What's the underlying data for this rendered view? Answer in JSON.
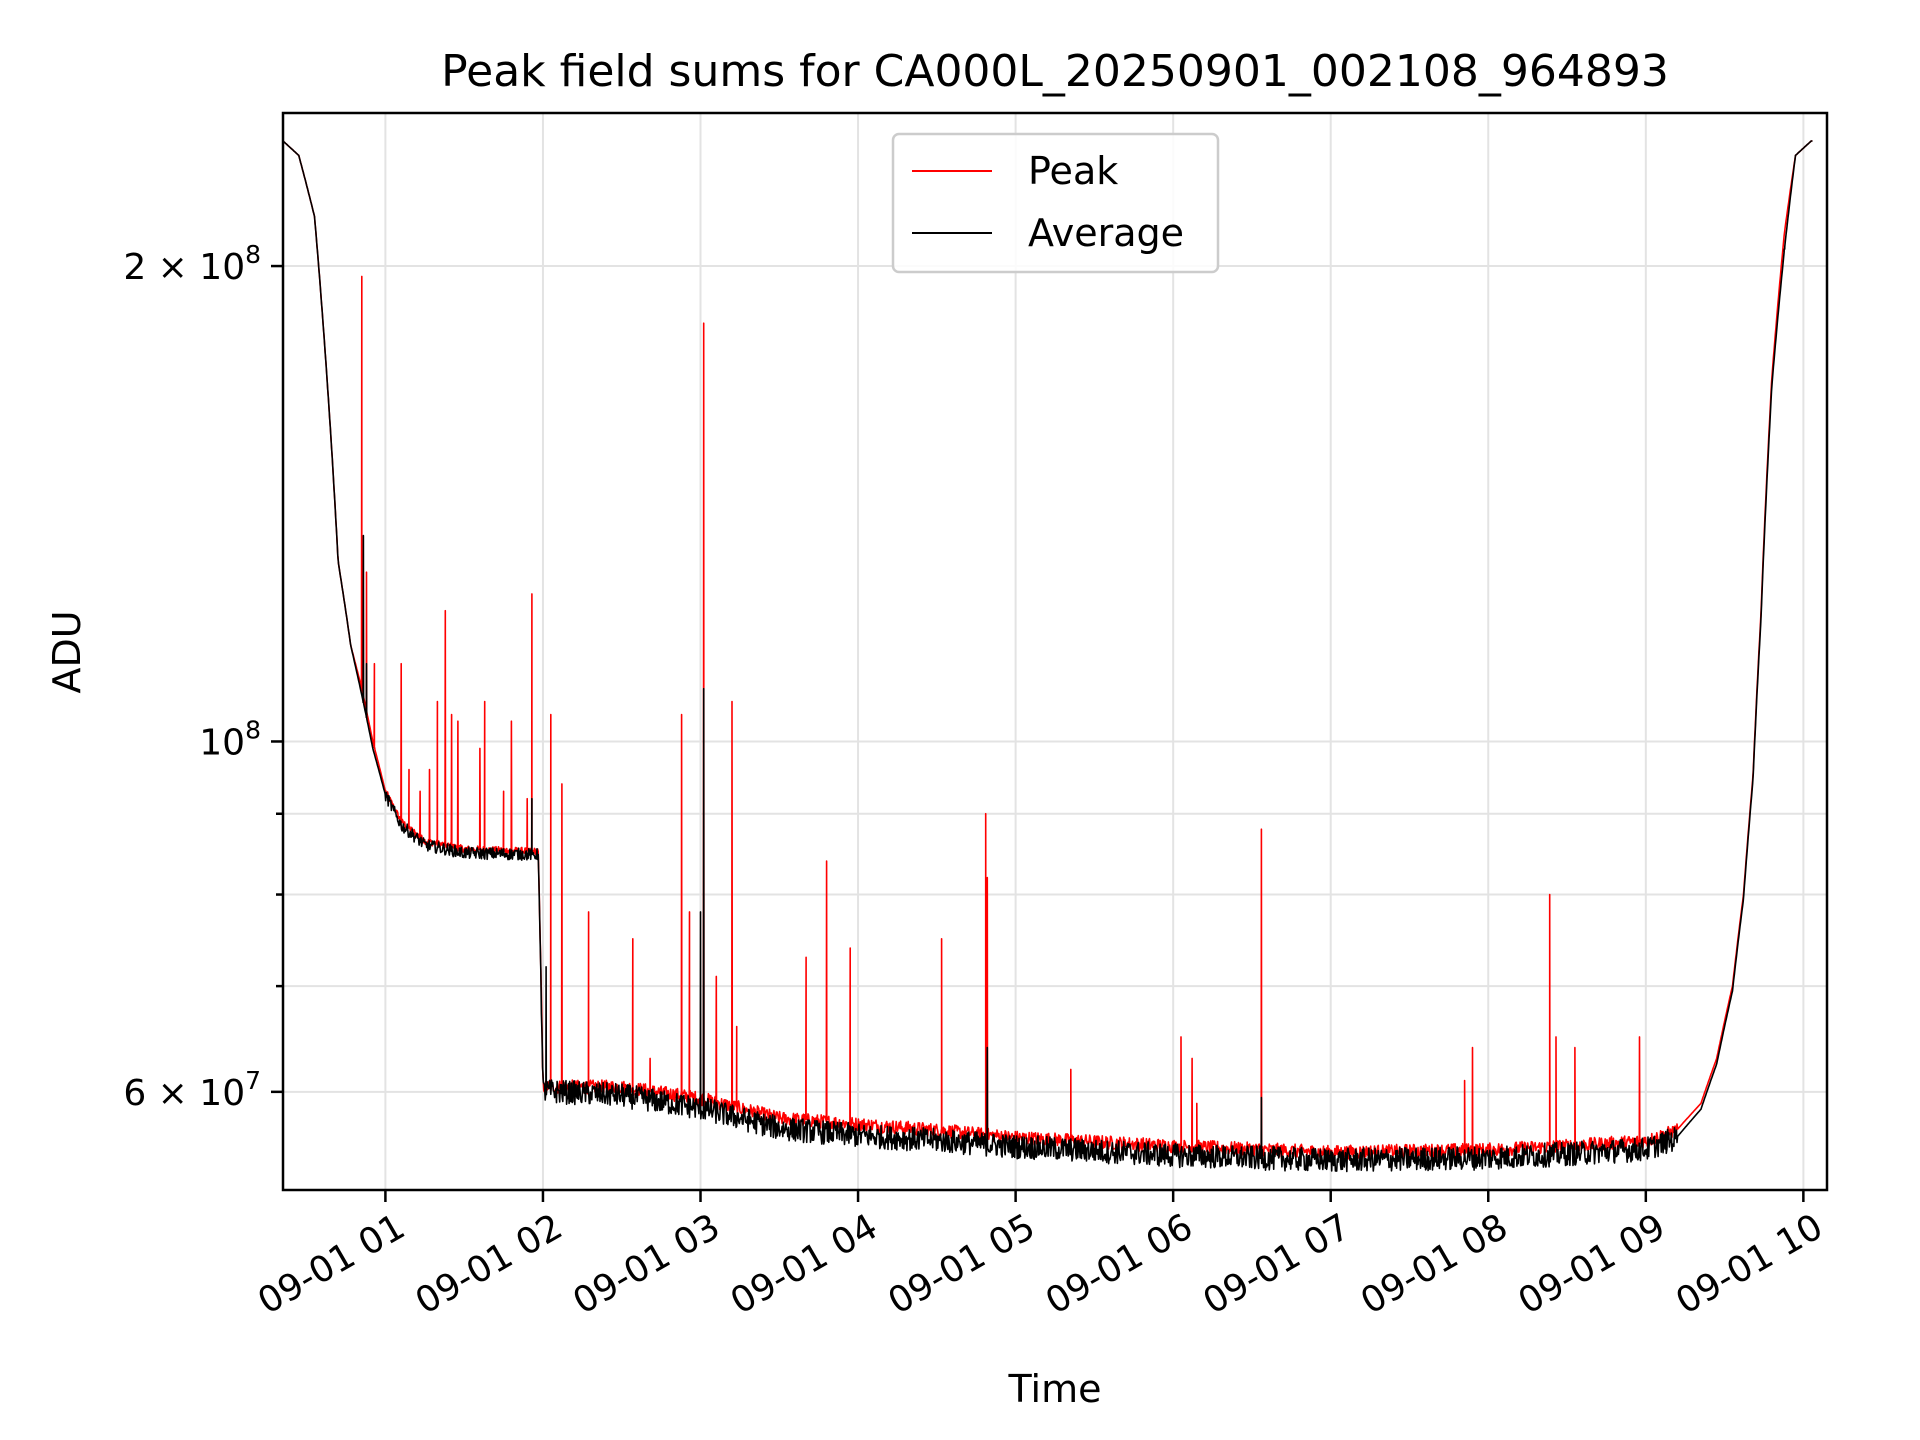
{
  "chart_data": {
    "type": "line",
    "title": "Peak field sums for CA000L_20250901_002108_964893",
    "xlabel": "Time",
    "ylabel": "ADU",
    "yscale": "log",
    "x_unit": "hours since 2025-09-01 00:00",
    "xlim": [
      0.35,
      10.15
    ],
    "ylim": [
      52000000,
      250000000
    ],
    "grid": true,
    "legend": "upper center",
    "x_ticks": [
      {
        "value": 1,
        "label": "09-01 01"
      },
      {
        "value": 2,
        "label": "09-01 02"
      },
      {
        "value": 3,
        "label": "09-01 03"
      },
      {
        "value": 4,
        "label": "09-01 04"
      },
      {
        "value": 5,
        "label": "09-01 05"
      },
      {
        "value": 6,
        "label": "09-01 06"
      },
      {
        "value": 7,
        "label": "09-01 07"
      },
      {
        "value": 8,
        "label": "09-01 08"
      },
      {
        "value": 9,
        "label": "09-01 09"
      },
      {
        "value": 10,
        "label": "09-01 10"
      }
    ],
    "y_ticks_major": [
      {
        "value": 60000000,
        "base": "6 × 10",
        "exp": "7"
      },
      {
        "value": 100000000,
        "base": "10",
        "exp": "8"
      },
      {
        "value": 200000000,
        "base": "2 × 10",
        "exp": "8"
      }
    ],
    "y_ticks_minor": [
      70000000,
      80000000,
      90000000
    ],
    "series": [
      {
        "name": "Peak",
        "color": "#ff0000",
        "baseline": [
          [
            0.35,
            240000000
          ],
          [
            0.45,
            235000000
          ],
          [
            0.55,
            215000000
          ],
          [
            0.62,
            175000000
          ],
          [
            0.7,
            130000000
          ],
          [
            0.78,
            115000000
          ],
          [
            0.85,
            108000000
          ],
          [
            0.92,
            100000000
          ],
          [
            1.0,
            93000000
          ],
          [
            1.1,
            89000000
          ],
          [
            1.25,
            86500000
          ],
          [
            1.5,
            85500000
          ],
          [
            1.97,
            85200000
          ],
          [
            2.0,
            60500000
          ],
          [
            2.5,
            60500000
          ],
          [
            3.0,
            59500000
          ],
          [
            3.5,
            57800000
          ],
          [
            4.0,
            57300000
          ],
          [
            4.5,
            56800000
          ],
          [
            5.0,
            56200000
          ],
          [
            6.0,
            55500000
          ],
          [
            7.0,
            55000000
          ],
          [
            8.0,
            55200000
          ],
          [
            8.5,
            55500000
          ],
          [
            9.0,
            55900000
          ],
          [
            9.2,
            56800000
          ],
          [
            9.35,
            59000000
          ],
          [
            9.45,
            63000000
          ],
          [
            9.55,
            70000000
          ],
          [
            9.62,
            80000000
          ],
          [
            9.68,
            95000000
          ],
          [
            9.73,
            120000000
          ],
          [
            9.8,
            170000000
          ],
          [
            9.88,
            210000000
          ],
          [
            9.95,
            235000000
          ],
          [
            10.05,
            240000000
          ]
        ],
        "spikes": [
          [
            0.85,
            197000000
          ],
          [
            0.88,
            128000000
          ],
          [
            0.93,
            112000000
          ],
          [
            1.1,
            112000000
          ],
          [
            1.15,
            96000000
          ],
          [
            1.22,
            93000000
          ],
          [
            1.28,
            96000000
          ],
          [
            1.33,
            106000000
          ],
          [
            1.38,
            121000000
          ],
          [
            1.42,
            104000000
          ],
          [
            1.46,
            103000000
          ],
          [
            1.6,
            99000000
          ],
          [
            1.63,
            106000000
          ],
          [
            1.75,
            93000000
          ],
          [
            1.8,
            103000000
          ],
          [
            1.9,
            92000000
          ],
          [
            1.93,
            124000000
          ],
          [
            2.05,
            104000000
          ],
          [
            2.12,
            94000000
          ],
          [
            2.29,
            78000000
          ],
          [
            2.57,
            75000000
          ],
          [
            2.68,
            63000000
          ],
          [
            2.88,
            104000000
          ],
          [
            2.93,
            78000000
          ],
          [
            3.02,
            184000000
          ],
          [
            3.1,
            71000000
          ],
          [
            3.2,
            106000000
          ],
          [
            3.23,
            66000000
          ],
          [
            3.67,
            73000000
          ],
          [
            3.8,
            84000000
          ],
          [
            3.95,
            74000000
          ],
          [
            4.53,
            75000000
          ],
          [
            4.81,
            90000000
          ],
          [
            4.82,
            82000000
          ],
          [
            5.35,
            62000000
          ],
          [
            6.05,
            65000000
          ],
          [
            6.12,
            63000000
          ],
          [
            6.15,
            59000000
          ],
          [
            6.56,
            88000000
          ],
          [
            7.85,
            61000000
          ],
          [
            7.9,
            64000000
          ],
          [
            8.39,
            80000000
          ],
          [
            8.43,
            65000000
          ],
          [
            8.55,
            64000000
          ],
          [
            8.96,
            65000000
          ]
        ]
      },
      {
        "name": "Average",
        "color": "#000000",
        "baseline": [
          [
            0.35,
            240000000
          ],
          [
            0.45,
            235000000
          ],
          [
            0.55,
            215000000
          ],
          [
            0.62,
            175000000
          ],
          [
            0.7,
            130000000
          ],
          [
            0.78,
            115000000
          ],
          [
            0.85,
            107000000
          ],
          [
            0.92,
            99000000
          ],
          [
            1.0,
            92500000
          ],
          [
            1.1,
            88500000
          ],
          [
            1.25,
            86000000
          ],
          [
            1.5,
            85000000
          ],
          [
            1.97,
            84800000
          ],
          [
            2.0,
            60200000
          ],
          [
            2.5,
            59800000
          ],
          [
            3.0,
            58700000
          ],
          [
            3.5,
            57000000
          ],
          [
            4.0,
            56400000
          ],
          [
            4.5,
            56000000
          ],
          [
            5.0,
            55500000
          ],
          [
            6.0,
            54800000
          ],
          [
            7.0,
            54400000
          ],
          [
            8.0,
            54600000
          ],
          [
            8.5,
            54900000
          ],
          [
            9.0,
            55300000
          ],
          [
            9.2,
            56200000
          ],
          [
            9.35,
            58500000
          ],
          [
            9.45,
            62500000
          ],
          [
            9.55,
            69500000
          ],
          [
            9.62,
            79500000
          ],
          [
            9.68,
            94500000
          ],
          [
            9.73,
            119000000
          ],
          [
            9.8,
            168000000
          ],
          [
            9.88,
            205000000
          ],
          [
            9.95,
            235000000
          ],
          [
            10.05,
            240000000
          ]
        ],
        "spikes": [
          [
            0.86,
            135000000
          ],
          [
            0.88,
            112000000
          ],
          [
            1.93,
            92000000
          ],
          [
            2.02,
            72000000
          ],
          [
            3.02,
            108000000
          ],
          [
            3.0,
            78000000
          ],
          [
            4.82,
            64000000
          ],
          [
            6.56,
            59500000
          ],
          [
            9.88,
            205000000
          ]
        ]
      }
    ]
  }
}
